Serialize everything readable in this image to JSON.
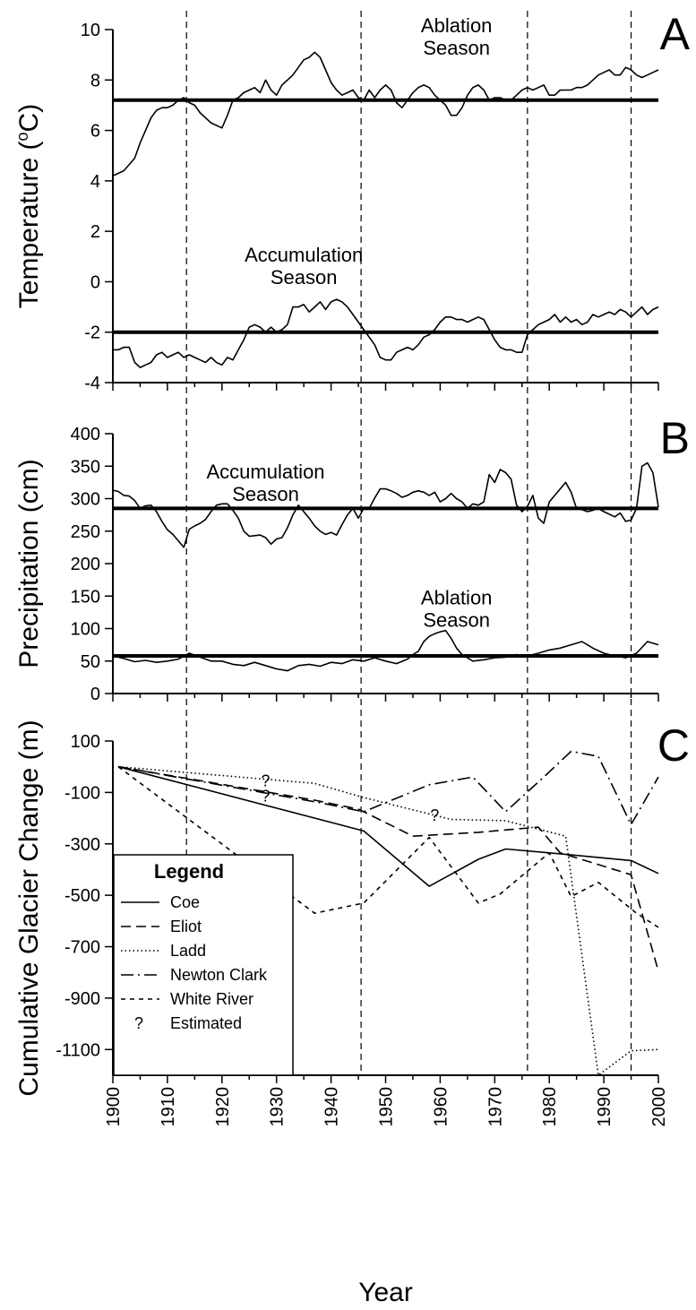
{
  "x_axis": {
    "label": "Year",
    "ticks": [
      1900,
      1910,
      1920,
      1930,
      1940,
      1950,
      1960,
      1970,
      1980,
      1990,
      2000
    ],
    "range": [
      1900,
      2000
    ]
  },
  "reference_years": [
    1913.5,
    1945.5,
    1976,
    1995
  ],
  "chart_data": [
    {
      "panel": "A",
      "type": "line",
      "ylabel": "Temperature (°C)",
      "ylabel_parts": {
        "main": "Temperature (",
        "sup": "o",
        "unit": "C)"
      },
      "ylim": [
        -4,
        10
      ],
      "yticks": [
        -4,
        -2,
        0,
        2,
        4,
        6,
        8,
        10
      ],
      "annotations": [
        {
          "lines": [
            "Ablation",
            "Season"
          ],
          "anchor_x": 1963,
          "anchor_y": 9.9
        },
        {
          "lines": [
            "Accumulation",
            "Season"
          ],
          "anchor_x": 1935,
          "anchor_y": 0.8
        }
      ],
      "series": [
        {
          "annotation": "Ablation Season",
          "mean": 7.2,
          "x": [
            1900,
            1902,
            1904,
            1905,
            1906,
            1907,
            1908,
            1909,
            1910,
            1911,
            1912,
            1913,
            1914,
            1915,
            1916,
            1918,
            1920,
            1921,
            1922,
            1923,
            1924,
            1925,
            1926,
            1927,
            1928,
            1929,
            1930,
            1931,
            1932,
            1933,
            1934,
            1935,
            1936,
            1937,
            1938,
            1939,
            1940,
            1941,
            1942,
            1943,
            1944,
            1945,
            1946,
            1947,
            1948,
            1949,
            1950,
            1951,
            1952,
            1953,
            1954,
            1955,
            1956,
            1957,
            1958,
            1959,
            1960,
            1961,
            1962,
            1963,
            1964,
            1965,
            1966,
            1967,
            1968,
            1969,
            1970,
            1971,
            1972,
            1973,
            1974,
            1975,
            1976,
            1977,
            1978,
            1979,
            1980,
            1981,
            1982,
            1983,
            1984,
            1985,
            1986,
            1987,
            1988,
            1989,
            1990,
            1991,
            1992,
            1993,
            1994,
            1995,
            1996,
            1997,
            1998,
            1999,
            2000
          ],
          "y": [
            4.2,
            4.4,
            4.9,
            5.5,
            6.0,
            6.5,
            6.8,
            6.9,
            6.9,
            7.0,
            7.2,
            7.3,
            7.1,
            7.0,
            6.7,
            6.3,
            6.1,
            6.6,
            7.2,
            7.3,
            7.5,
            7.6,
            7.7,
            7.5,
            8.0,
            7.6,
            7.4,
            7.8,
            8.0,
            8.2,
            8.5,
            8.8,
            8.9,
            9.1,
            8.9,
            8.4,
            7.9,
            7.6,
            7.4,
            7.5,
            7.6,
            7.3,
            7.2,
            7.6,
            7.3,
            7.6,
            7.8,
            7.6,
            7.1,
            6.9,
            7.2,
            7.5,
            7.7,
            7.8,
            7.7,
            7.4,
            7.2,
            7.0,
            6.6,
            6.6,
            6.9,
            7.4,
            7.7,
            7.8,
            7.6,
            7.2,
            7.3,
            7.3,
            7.2,
            7.2,
            7.4,
            7.6,
            7.7,
            7.6,
            7.7,
            7.8,
            7.4,
            7.4,
            7.6,
            7.6,
            7.6,
            7.7,
            7.7,
            7.8,
            8.0,
            8.2,
            8.3,
            8.4,
            8.2,
            8.2,
            8.5,
            8.4,
            8.2,
            8.1,
            8.2,
            8.3,
            8.4
          ]
        },
        {
          "annotation": "Accumulation Season",
          "mean": -2.0,
          "x": [
            1900,
            1901,
            1902,
            1903,
            1904,
            1905,
            1906,
            1907,
            1908,
            1909,
            1910,
            1911,
            1912,
            1913,
            1914,
            1915,
            1916,
            1917,
            1918,
            1919,
            1920,
            1921,
            1922,
            1923,
            1924,
            1925,
            1926,
            1927,
            1928,
            1929,
            1930,
            1931,
            1932,
            1933,
            1934,
            1935,
            1936,
            1937,
            1938,
            1939,
            1940,
            1941,
            1942,
            1943,
            1944,
            1945,
            1946,
            1947,
            1948,
            1949,
            1950,
            1951,
            1952,
            1953,
            1954,
            1955,
            1956,
            1957,
            1958,
            1959,
            1960,
            1961,
            1962,
            1963,
            1964,
            1965,
            1966,
            1967,
            1968,
            1969,
            1970,
            1971,
            1972,
            1973,
            1974,
            1975,
            1976,
            1977,
            1978,
            1979,
            1980,
            1981,
            1982,
            1983,
            1984,
            1985,
            1986,
            1987,
            1988,
            1989,
            1990,
            1991,
            1992,
            1993,
            1994,
            1995,
            1996,
            1997,
            1998,
            1999,
            2000
          ],
          "y": [
            -2.7,
            -2.7,
            -2.6,
            -2.6,
            -3.2,
            -3.4,
            -3.3,
            -3.2,
            -2.9,
            -2.8,
            -3.0,
            -2.9,
            -2.8,
            -3.0,
            -2.9,
            -3.0,
            -3.1,
            -3.2,
            -3.0,
            -3.2,
            -3.3,
            -3.0,
            -3.1,
            -2.7,
            -2.3,
            -1.8,
            -1.7,
            -1.8,
            -2.0,
            -1.8,
            -2.0,
            -1.9,
            -1.7,
            -1.0,
            -1.0,
            -0.9,
            -1.2,
            -1.0,
            -0.8,
            -1.1,
            -0.8,
            -0.7,
            -0.8,
            -1.0,
            -1.3,
            -1.6,
            -1.9,
            -2.2,
            -2.5,
            -3.0,
            -3.1,
            -3.1,
            -2.8,
            -2.7,
            -2.6,
            -2.7,
            -2.5,
            -2.2,
            -2.1,
            -1.9,
            -1.6,
            -1.4,
            -1.4,
            -1.5,
            -1.5,
            -1.6,
            -1.5,
            -1.4,
            -1.5,
            -1.9,
            -2.3,
            -2.6,
            -2.7,
            -2.7,
            -2.8,
            -2.8,
            -2.1,
            -1.9,
            -1.7,
            -1.6,
            -1.5,
            -1.3,
            -1.6,
            -1.4,
            -1.6,
            -1.5,
            -1.7,
            -1.6,
            -1.3,
            -1.4,
            -1.3,
            -1.2,
            -1.3,
            -1.1,
            -1.2,
            -1.4,
            -1.2,
            -1.0,
            -1.3,
            -1.1,
            -1.0
          ]
        }
      ]
    },
    {
      "panel": "B",
      "type": "line",
      "ylabel": "Precipitation (cm)",
      "ylim": [
        0,
        400
      ],
      "yticks": [
        0,
        50,
        100,
        150,
        200,
        250,
        300,
        350,
        400
      ],
      "annotations": [
        {
          "lines": [
            "Accumulation",
            "Season"
          ],
          "anchor_x": 1928,
          "anchor_y": 331
        },
        {
          "lines": [
            "Ablation",
            "Season"
          ],
          "anchor_x": 1963,
          "anchor_y": 137
        }
      ],
      "series": [
        {
          "annotation": "Accumulation Season",
          "mean": 285,
          "x": [
            1900,
            1901,
            1902,
            1903,
            1904,
            1905,
            1906,
            1907,
            1908,
            1909,
            1910,
            1911,
            1912,
            1913,
            1914,
            1915,
            1916,
            1917,
            1918,
            1919,
            1920,
            1921,
            1922,
            1923,
            1924,
            1925,
            1926,
            1927,
            1928,
            1929,
            1930,
            1931,
            1932,
            1933,
            1934,
            1935,
            1936,
            1937,
            1938,
            1939,
            1940,
            1941,
            1942,
            1943,
            1944,
            1945,
            1946,
            1947,
            1948,
            1949,
            1950,
            1951,
            1952,
            1953,
            1954,
            1955,
            1956,
            1957,
            1958,
            1959,
            1960,
            1961,
            1962,
            1963,
            1964,
            1965,
            1966,
            1967,
            1968,
            1969,
            1970,
            1971,
            1972,
            1973,
            1974,
            1975,
            1976,
            1977,
            1978,
            1979,
            1980,
            1981,
            1982,
            1983,
            1984,
            1985,
            1986,
            1987,
            1988,
            1989,
            1990,
            1991,
            1992,
            1993,
            1994,
            1995,
            1996,
            1997,
            1998,
            1999,
            2000
          ],
          "y": [
            313,
            311,
            305,
            304,
            297,
            285,
            289,
            290,
            280,
            265,
            252,
            245,
            235,
            225,
            253,
            258,
            262,
            268,
            280,
            290,
            292,
            292,
            282,
            270,
            250,
            242,
            243,
            244,
            240,
            230,
            238,
            240,
            255,
            275,
            290,
            280,
            270,
            258,
            250,
            245,
            248,
            244,
            260,
            275,
            285,
            270,
            285,
            285,
            301,
            315,
            315,
            312,
            308,
            302,
            305,
            310,
            312,
            310,
            305,
            310,
            295,
            300,
            308,
            300,
            295,
            285,
            292,
            290,
            295,
            337,
            325,
            345,
            340,
            330,
            290,
            280,
            288,
            305,
            270,
            262,
            295,
            305,
            315,
            325,
            310,
            285,
            283,
            280,
            282,
            285,
            280,
            276,
            272,
            278,
            265,
            267,
            285,
            350,
            355,
            340,
            287
          ]
        },
        {
          "annotation": "Ablation Season",
          "mean": 58,
          "x": [
            1900,
            1902,
            1904,
            1906,
            1908,
            1910,
            1912,
            1914,
            1916,
            1918,
            1920,
            1922,
            1924,
            1926,
            1928,
            1930,
            1932,
            1934,
            1936,
            1938,
            1940,
            1942,
            1944,
            1946,
            1948,
            1950,
            1952,
            1954,
            1955,
            1956,
            1957,
            1958,
            1959,
            1960,
            1961,
            1962,
            1963,
            1964,
            1966,
            1968,
            1970,
            1972,
            1974,
            1976,
            1978,
            1980,
            1982,
            1984,
            1986,
            1988,
            1990,
            1992,
            1994,
            1996,
            1998,
            2000
          ],
          "y": [
            58,
            54,
            49,
            51,
            48,
            50,
            53,
            62,
            56,
            50,
            50,
            45,
            43,
            48,
            43,
            38,
            35,
            43,
            45,
            42,
            48,
            46,
            52,
            50,
            55,
            50,
            46,
            53,
            60,
            65,
            80,
            88,
            92,
            95,
            97,
            85,
            70,
            60,
            50,
            52,
            55,
            56,
            60,
            58,
            62,
            67,
            70,
            75,
            80,
            70,
            62,
            58,
            55,
            62,
            80,
            75
          ]
        }
      ]
    },
    {
      "panel": "C",
      "type": "line",
      "ylabel": "Cumulative Glacier Change (m)",
      "ylim": [
        -1200,
        100
      ],
      "yticks": [
        100,
        -100,
        -300,
        -500,
        -700,
        -900,
        -1100
      ],
      "legend": {
        "title": "Legend",
        "position": "bottom-left",
        "entries": [
          "Coe",
          "Eliot",
          "Ladd",
          "Newton Clark",
          "White River",
          "Estimated"
        ],
        "estimated_symbol": "?"
      },
      "estimated_markers": [
        {
          "symbol": "?",
          "x": 1928,
          "y": -55
        },
        {
          "symbol": "?",
          "x": 1928,
          "y": -115
        },
        {
          "symbol": "?",
          "x": 1928,
          "y": -430
        },
        {
          "symbol": "?",
          "x": 1959,
          "y": -190
        }
      ],
      "series": [
        {
          "name": "Coe",
          "style": "solid",
          "x": [
            1901,
            1946,
            1958,
            1967,
            1972,
            1980,
            1995,
            2000
          ],
          "y": [
            0,
            -250,
            -465,
            -360,
            -320,
            -335,
            -365,
            -415
          ]
        },
        {
          "name": "Eliot",
          "style": "dashed",
          "x": [
            1901,
            1937,
            1945,
            1955,
            1967,
            1978,
            1982,
            1995,
            2000
          ],
          "y": [
            0,
            -130,
            -165,
            -270,
            -255,
            -235,
            -335,
            -420,
            -795
          ]
        },
        {
          "name": "Ladd",
          "style": "dotted",
          "x": [
            1901,
            1937,
            1946,
            1962,
            1972,
            1983,
            1989,
            1995,
            2000
          ],
          "y": [
            0,
            -65,
            -120,
            -205,
            -210,
            -270,
            -1200,
            -1105,
            -1100
          ]
        },
        {
          "name": "Newton Clark",
          "style": "dashdot",
          "x": [
            1901,
            1938,
            1946,
            1958,
            1966,
            1972,
            1979,
            1984,
            1989,
            1995,
            2000
          ],
          "y": [
            0,
            -140,
            -175,
            -70,
            -40,
            -175,
            -40,
            60,
            40,
            -225,
            -40
          ]
        },
        {
          "name": "White River",
          "style": "shortdash",
          "x": [
            1901,
            1937,
            1946,
            1958,
            1967,
            1971,
            1980,
            1984,
            1989,
            1996,
            2000
          ],
          "y": [
            0,
            -570,
            -530,
            -275,
            -530,
            -495,
            -335,
            -505,
            -450,
            -570,
            -625
          ]
        }
      ]
    }
  ]
}
